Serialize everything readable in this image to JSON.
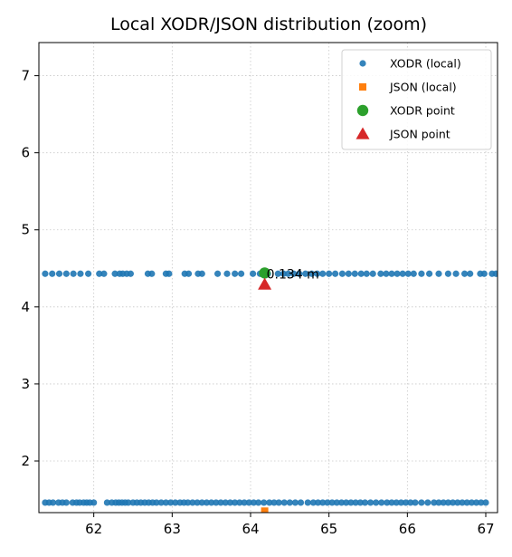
{
  "chart_data": {
    "type": "scatter",
    "title": "Local XODR/JSON distribution (zoom)",
    "xlabel": "",
    "ylabel": "",
    "xlim": [
      61.3,
      67.15
    ],
    "ylim": [
      1.33,
      7.43
    ],
    "xticks": [
      62,
      63,
      64,
      65,
      66,
      67
    ],
    "yticks": [
      2,
      3,
      4,
      5,
      6,
      7
    ],
    "grid": true,
    "legend_position": "top-right",
    "colors": {
      "xodr": "#1f77b4",
      "json": "#ff7f0e",
      "xodr_point": "#2ca02c",
      "json_point": "#d62728"
    },
    "legend": [
      {
        "label": "XODR (local)",
        "marker": "circle-small",
        "color": "#1f77b4"
      },
      {
        "label": "JSON (local)",
        "marker": "square",
        "color": "#ff7f0e"
      },
      {
        "label": "XODR point",
        "marker": "circle",
        "color": "#2ca02c"
      },
      {
        "label": "JSON point",
        "marker": "triangle",
        "color": "#d62728"
      }
    ],
    "series": [
      {
        "name": "XODR (local)",
        "marker": "circle-small",
        "color": "#1f77b4",
        "rows": [
          {
            "y": 4.43,
            "x": [
              61.38,
              61.47,
              61.56,
              61.65,
              61.74,
              61.83,
              61.93,
              62.07,
              62.13,
              62.27,
              62.33,
              62.37,
              62.42,
              62.47,
              62.69,
              62.74,
              62.92,
              62.96,
              63.16,
              63.21,
              63.33,
              63.38,
              63.58,
              63.7,
              63.8,
              63.88,
              64.03,
              64.12,
              64.22,
              64.35,
              64.42,
              64.48,
              64.55,
              64.62,
              64.7,
              64.78,
              64.85,
              64.92,
              65.0,
              65.08,
              65.17,
              65.25,
              65.33,
              65.41,
              65.48,
              65.56,
              65.66,
              65.73,
              65.8,
              65.87,
              65.94,
              66.01,
              66.08,
              66.18,
              66.28,
              66.4,
              66.52,
              66.62,
              66.73,
              66.8,
              66.93,
              66.98,
              67.08,
              67.13
            ]
          },
          {
            "y": 1.46,
            "x": [
              61.38,
              61.43,
              61.48,
              61.55,
              61.6,
              61.65,
              61.73,
              61.78,
              61.82,
              61.87,
              61.91,
              61.95,
              62.0,
              62.17,
              62.23,
              62.28,
              62.32,
              62.36,
              62.4,
              62.44,
              62.5,
              62.55,
              62.6,
              62.65,
              62.7,
              62.75,
              62.8,
              62.86,
              62.92,
              62.98,
              63.04,
              63.1,
              63.15,
              63.2,
              63.26,
              63.32,
              63.38,
              63.44,
              63.5,
              63.56,
              63.62,
              63.68,
              63.74,
              63.8,
              63.86,
              63.92,
              63.98,
              64.04,
              64.1,
              64.17,
              64.24,
              64.3,
              64.36,
              64.43,
              64.5,
              64.57,
              64.64,
              64.73,
              64.8,
              64.86,
              64.92,
              64.98,
              65.04,
              65.1,
              65.16,
              65.22,
              65.28,
              65.34,
              65.4,
              65.46,
              65.53,
              65.6,
              65.67,
              65.74,
              65.8,
              65.86,
              65.92,
              65.98,
              66.04,
              66.1,
              66.18,
              66.26,
              66.34,
              66.4,
              66.46,
              66.52,
              66.58,
              66.64,
              66.7,
              66.76,
              66.82,
              66.88,
              66.94,
              67.0
            ]
          }
        ]
      },
      {
        "name": "JSON (local)",
        "marker": "square",
        "color": "#ff7f0e",
        "points": [
          {
            "x": 64.18,
            "y": 1.35
          }
        ]
      },
      {
        "name": "XODR point",
        "marker": "circle",
        "color": "#2ca02c",
        "points": [
          {
            "x": 64.18,
            "y": 4.44
          }
        ]
      },
      {
        "name": "JSON point",
        "marker": "triangle",
        "color": "#d62728",
        "points": [
          {
            "x": 64.18,
            "y": 4.29
          }
        ]
      }
    ],
    "annotations": [
      {
        "text": "0.134 m",
        "x": 64.18,
        "y": 4.44
      }
    ]
  }
}
